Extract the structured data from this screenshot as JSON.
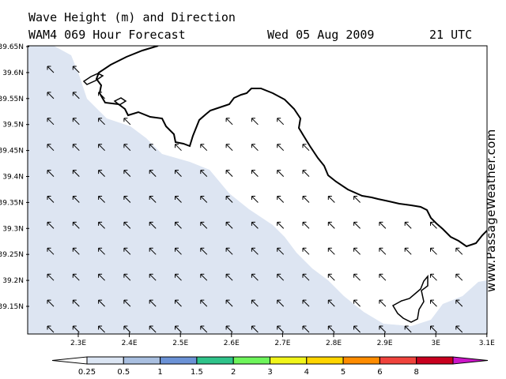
{
  "header": {
    "title": "Wave Height (m) and Direction",
    "subtitle": "WAM4 069 Hour Forecast",
    "date": "Wed 05 Aug 2009",
    "time": "21 UTC"
  },
  "watermark": "www.PassageWeather.com",
  "map": {
    "lat_labels": [
      "39.65N",
      "39.6N",
      "39.55N",
      "39.5N",
      "39.45N",
      "39.4N",
      "39.35N",
      "39.3N",
      "39.25N",
      "39.2N",
      "39.15N"
    ],
    "lon_labels": [
      "2.3E",
      "2.4E",
      "2.5E",
      "2.6E",
      "2.7E",
      "2.8E",
      "2.9E",
      "3E",
      "3.1E"
    ],
    "arrow_direction": "north-west",
    "colors": {
      "sea_band": "#dde5f2",
      "land": "#ffffff",
      "coast": "#000000"
    }
  },
  "colorbar": {
    "labels": [
      "0.25",
      "0.5",
      "1",
      "1.5",
      "2",
      "3",
      "4",
      "5",
      "6",
      "8"
    ],
    "colors": [
      "#ffffff",
      "#dbe5f3",
      "#a9bfe0",
      "#6b92d6",
      "#2fc38a",
      "#6ef55b",
      "#f1f51a",
      "#ffd500",
      "#ff8c00",
      "#f0433c",
      "#c8001e",
      "#cc16c8"
    ]
  }
}
